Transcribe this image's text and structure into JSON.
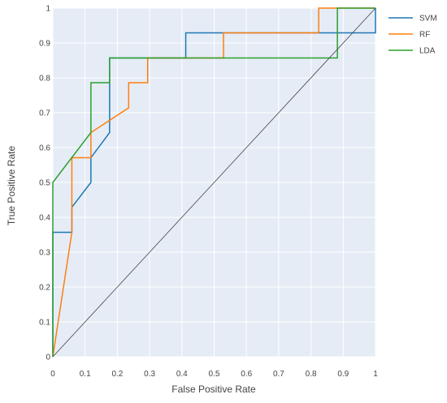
{
  "chart_data": {
    "type": "line",
    "title": "",
    "xlabel": "False Positive Rate",
    "ylabel": "True Positive Rate",
    "xlim": [
      0,
      1
    ],
    "ylim": [
      0,
      1
    ],
    "grid": true,
    "legend_placement": "top-right",
    "x_ticks": [
      0,
      0.1,
      0.2,
      0.3,
      0.4,
      0.5,
      0.6,
      0.7,
      0.8,
      0.9,
      1
    ],
    "x_tick_labels": [
      "0",
      "0.1",
      "0.2",
      "0.3",
      "0.4",
      "0.5",
      "0.6",
      "0.7",
      "0.8",
      "0.9",
      "1"
    ],
    "y_ticks": [
      0,
      0.1,
      0.2,
      0.3,
      0.4,
      0.5,
      0.6,
      0.7,
      0.8,
      0.9,
      1
    ],
    "y_tick_labels": [
      "0",
      "0.1",
      "0.2",
      "0.3",
      "0.4",
      "0.5",
      "0.6",
      "0.7",
      "0.8",
      "0.9",
      "1"
    ],
    "series": [
      {
        "name": "SVM",
        "color": "#1f77b4",
        "x": [
          0,
          0,
          0.059,
          0.059,
          0.118,
          0.118,
          0.176,
          0.176,
          0.412,
          0.412,
          0.882,
          0.882,
          1,
          1
        ],
        "y": [
          0,
          0.357,
          0.357,
          0.429,
          0.5,
          0.571,
          0.643,
          0.857,
          0.857,
          0.929,
          0.929,
          0.929,
          0.929,
          1
        ]
      },
      {
        "name": "RF",
        "color": "#ff7f0e",
        "x": [
          0,
          0.059,
          0.059,
          0.118,
          0.118,
          0.235,
          0.235,
          0.294,
          0.294,
          0.529,
          0.529,
          0.824,
          0.824,
          1
        ],
        "y": [
          0,
          0.357,
          0.571,
          0.571,
          0.643,
          0.714,
          0.786,
          0.786,
          0.857,
          0.857,
          0.929,
          0.929,
          1,
          1
        ]
      },
      {
        "name": "LDA",
        "color": "#2ca02c",
        "x": [
          0,
          0,
          0.118,
          0.118,
          0.176,
          0.176,
          0.882,
          0.882,
          1
        ],
        "y": [
          0,
          0.5,
          0.643,
          0.786,
          0.786,
          0.857,
          0.857,
          1,
          1
        ]
      },
      {
        "name": "",
        "color": "#444444",
        "x": [
          0,
          1
        ],
        "y": [
          0,
          1
        ]
      }
    ],
    "legend": [
      {
        "name": "SVM",
        "color": "#1f77b4"
      },
      {
        "name": "RF",
        "color": "#ff7f0e"
      },
      {
        "name": "LDA",
        "color": "#2ca02c"
      }
    ],
    "colors": {
      "plot_background": "#e5ecf6",
      "grid": "#ffffff",
      "text": "#444444"
    }
  }
}
